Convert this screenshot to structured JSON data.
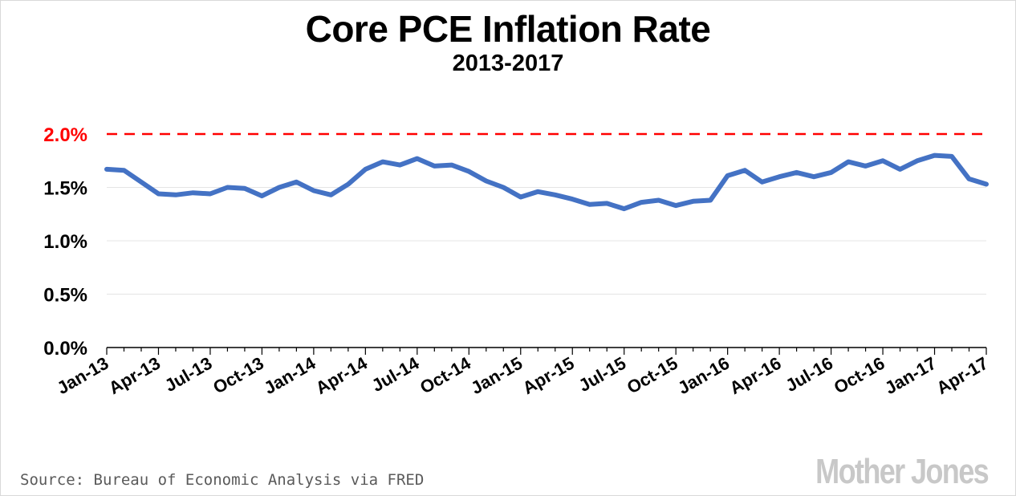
{
  "chart_data": {
    "type": "line",
    "title": "Core PCE Inflation Rate",
    "subtitle": "2013-2017",
    "xlabel": "",
    "ylabel": "",
    "ylim": [
      0,
      2.0
    ],
    "y_ticks": [
      "0.0%",
      "0.5%",
      "1.0%",
      "1.5%",
      "2.0%"
    ],
    "y_tick_values": [
      0,
      0.5,
      1.0,
      1.5,
      2.0
    ],
    "x_tick_labels": [
      "Jan-13",
      "Apr-13",
      "Jul-13",
      "Oct-13",
      "Jan-14",
      "Apr-14",
      "Jul-14",
      "Oct-14",
      "Jan-15",
      "Apr-15",
      "Jul-15",
      "Oct-15",
      "Jan-16",
      "Apr-16",
      "Jul-16",
      "Oct-16",
      "Jan-17",
      "Apr-17"
    ],
    "reference_line": {
      "value": 2.0,
      "label": "2.0%",
      "color": "#ff0000",
      "style": "dashed"
    },
    "series": [
      {
        "name": "Core PCE",
        "color": "#4472c4",
        "values": [
          1.67,
          1.66,
          1.55,
          1.44,
          1.43,
          1.45,
          1.44,
          1.5,
          1.49,
          1.42,
          1.5,
          1.55,
          1.47,
          1.43,
          1.53,
          1.67,
          1.74,
          1.71,
          1.77,
          1.7,
          1.71,
          1.65,
          1.56,
          1.5,
          1.41,
          1.46,
          1.43,
          1.39,
          1.34,
          1.35,
          1.3,
          1.36,
          1.38,
          1.33,
          1.37,
          1.38,
          1.61,
          1.66,
          1.55,
          1.6,
          1.64,
          1.6,
          1.64,
          1.74,
          1.7,
          1.75,
          1.67,
          1.75,
          1.8,
          1.79,
          1.58,
          1.53
        ]
      }
    ],
    "grid": true,
    "legend": "none"
  },
  "footer": {
    "source": "Source: Bureau of Economic Analysis via FRED",
    "logo": "Mother Jones"
  }
}
